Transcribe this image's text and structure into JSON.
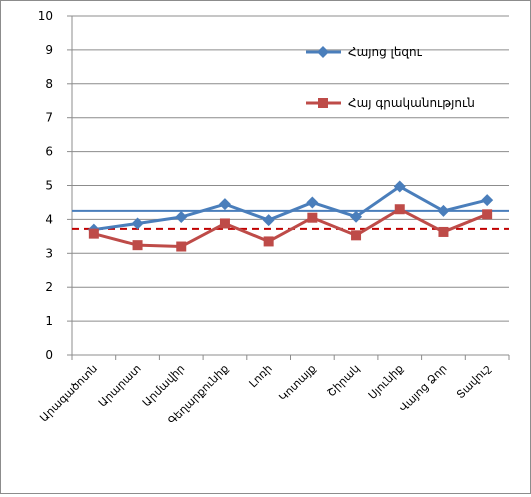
{
  "chart_data": {
    "type": "line",
    "title": "",
    "xlabel": "",
    "ylabel": "",
    "ylim": [
      0,
      10
    ],
    "yticks": [
      "0",
      "1",
      "2",
      "3",
      "4",
      "5",
      "6",
      "7",
      "8",
      "9",
      "10"
    ],
    "grid": "horizontal",
    "legend_position": "top-right",
    "categories": [
      "Արագածոտն",
      "Արարատ",
      "Արմավիր",
      "Գեղարքունիք",
      "Լոռի",
      "Կոտայք",
      "Շիրակ",
      "Սյունիք",
      "Վայոց Ձոր",
      "Տավուշ"
    ],
    "series": [
      {
        "name": "Հայոց լեզու",
        "color": "#4a7ebb",
        "marker": "diamond",
        "values": [
          3.7,
          3.88,
          4.07,
          4.45,
          3.98,
          4.5,
          4.08,
          4.97,
          4.25,
          4.57
        ]
      },
      {
        "name": "Հայ գրականություն",
        "color": "#be4b48",
        "marker": "square",
        "values": [
          3.58,
          3.24,
          3.2,
          3.88,
          3.35,
          4.05,
          3.53,
          4.3,
          3.63,
          4.15
        ]
      }
    ],
    "reference_lines": [
      {
        "value": 4.25,
        "style": "solid",
        "color": "#4a7ebb"
      },
      {
        "value": 3.72,
        "style": "dashed",
        "color": "#c00000"
      }
    ]
  }
}
